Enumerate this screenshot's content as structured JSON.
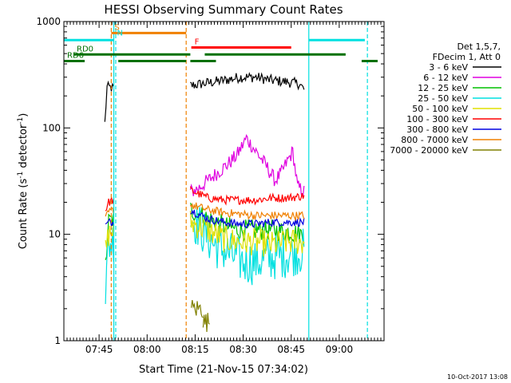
{
  "chart_data": {
    "type": "line",
    "title": "HESSI Observing Summary Count Rates",
    "xlabel": "Start Time (21-Nov-15 07:34:02)",
    "ylabel": "Count Rate (s⁻¹ detector⁻¹)",
    "ylabel_main": "Count Rate (s",
    "ylabel_sup1": "-1",
    "ylabel_mid": " detector",
    "ylabel_sup2": "-1",
    "ylabel_end": ")",
    "x_unit": "minutes after 07:34:02",
    "xlim": [
      0,
      100
    ],
    "ylim": [
      1,
      1000
    ],
    "yscale": "log",
    "x_ticks": [
      {
        "value": 11,
        "label": "07:45"
      },
      {
        "value": 26,
        "label": "08:00"
      },
      {
        "value": 41,
        "label": "08:15"
      },
      {
        "value": 56,
        "label": "08:30"
      },
      {
        "value": 71,
        "label": "08:45"
      },
      {
        "value": 86,
        "label": "09:00"
      }
    ],
    "y_ticks": [
      {
        "value": 1,
        "label": "1"
      },
      {
        "value": 10,
        "label": "10"
      },
      {
        "value": 100,
        "label": "100"
      },
      {
        "value": 1000,
        "label": "1000"
      }
    ],
    "legend_header": [
      "Det 1,5,7,",
      "FDecim 1, Att 0"
    ],
    "legend_placement": "right",
    "series": [
      {
        "name": "3 - 6 keV",
        "color": "#000000",
        "segments": [
          [
            [
              12.8,
              110
            ],
            [
              13.5,
              240
            ],
            [
              14.5,
              240
            ],
            [
              15.5,
              235
            ]
          ],
          [
            [
              39.5,
              250
            ],
            [
              45,
              265
            ],
            [
              50,
              280
            ],
            [
              55,
              300
            ],
            [
              60,
              300
            ],
            [
              65,
              280
            ],
            [
              70,
              270
            ],
            [
              73.5,
              260
            ],
            [
              75,
              230
            ]
          ]
        ],
        "noise": 0.05
      },
      {
        "name": "6 - 12 keV",
        "color": "#e000e0",
        "segments": [
          [
            [
              39.5,
              25
            ],
            [
              42,
              27
            ],
            [
              45,
              32
            ],
            [
              48,
              38
            ],
            [
              51,
              45
            ],
            [
              54,
              55
            ],
            [
              57,
              80
            ],
            [
              60,
              60
            ],
            [
              63,
              45
            ],
            [
              66,
              32
            ],
            [
              68,
              38
            ],
            [
              70,
              50
            ],
            [
              71.5,
              60
            ],
            [
              73,
              28
            ],
            [
              75,
              25
            ]
          ]
        ],
        "noise": 0.07
      },
      {
        "name": "12 - 25 keV",
        "color": "#00c000",
        "segments": [
          [
            [
              13,
              5
            ],
            [
              14,
              13
            ],
            [
              15.5,
              14
            ]
          ],
          [
            [
              39.5,
              17
            ],
            [
              45,
              14
            ],
            [
              50,
              12
            ],
            [
              55,
              11
            ],
            [
              60,
              11
            ],
            [
              65,
              11
            ],
            [
              70,
              10.5
            ],
            [
              75,
              10
            ]
          ]
        ],
        "noise": 0.1
      },
      {
        "name": "25 - 50 keV",
        "color": "#00e0e0",
        "segments": [
          [
            [
              13,
              3
            ],
            [
              14,
              8
            ],
            [
              15.5,
              9
            ]
          ],
          [
            [
              39.5,
              15
            ],
            [
              43,
              11
            ],
            [
              47,
              8
            ],
            [
              52,
              6.5
            ],
            [
              56,
              5.5
            ],
            [
              60,
              5.5
            ],
            [
              65,
              6
            ],
            [
              70,
              6.5
            ],
            [
              75,
              7
            ]
          ]
        ],
        "noise": 0.22
      },
      {
        "name": "50 - 100 keV",
        "color": "#e0e000",
        "segments": [
          [
            [
              13,
              7
            ],
            [
              14,
              10
            ],
            [
              15.5,
              11
            ]
          ],
          [
            [
              39.5,
              13
            ],
            [
              45,
              11
            ],
            [
              50,
              9
            ],
            [
              55,
              8.5
            ],
            [
              60,
              8.5
            ],
            [
              65,
              8
            ],
            [
              70,
              8.5
            ],
            [
              75,
              8.5
            ]
          ]
        ],
        "noise": 0.13
      },
      {
        "name": "100 - 300 keV",
        "color": "#ff0000",
        "segments": [
          [
            [
              13,
              17
            ],
            [
              14,
              20
            ],
            [
              15.5,
              21
            ]
          ],
          [
            [
              39.5,
              26
            ],
            [
              45,
              22
            ],
            [
              50,
              21
            ],
            [
              55,
              21
            ],
            [
              60,
              21
            ],
            [
              65,
              22
            ],
            [
              70,
              22
            ],
            [
              75,
              23
            ]
          ]
        ],
        "noise": 0.04
      },
      {
        "name": "300 - 800 keV",
        "color": "#0000e0",
        "segments": [
          [
            [
              13,
              12
            ],
            [
              14,
              13
            ],
            [
              15.5,
              13
            ]
          ],
          [
            [
              39.5,
              17
            ],
            [
              45,
              14
            ],
            [
              50,
              13
            ],
            [
              55,
              12.5
            ],
            [
              60,
              12.5
            ],
            [
              65,
              13
            ],
            [
              70,
              13
            ],
            [
              75,
              13
            ]
          ]
        ],
        "noise": 0.04
      },
      {
        "name": "800 - 7000 keV",
        "color": "#f08000",
        "segments": [
          [
            [
              13,
              14
            ],
            [
              14,
              16
            ],
            [
              15.5,
              17
            ]
          ],
          [
            [
              39.5,
              19
            ],
            [
              45,
              17
            ],
            [
              50,
              16
            ],
            [
              55,
              15.5
            ],
            [
              60,
              15
            ],
            [
              65,
              15
            ],
            [
              70,
              15
            ],
            [
              75,
              15
            ]
          ]
        ],
        "noise": 0.04
      },
      {
        "name": "7000 - 20000 keV",
        "color": "#808000",
        "segments": [
          [
            [
              39.8,
              2
            ],
            [
              43.5,
              2
            ]
          ],
          [
            [
              43.5,
              1.5
            ],
            [
              45.5,
              1.5
            ]
          ]
        ],
        "noise": 0.1
      }
    ],
    "vertical_lines": [
      {
        "x": 14.8,
        "color": "#f08000",
        "dashed": true
      },
      {
        "x": 15.6,
        "color": "#00e0e0",
        "dashed": false
      },
      {
        "x": 16.2,
        "color": "#00e0e0",
        "dashed": true
      },
      {
        "x": 38.2,
        "color": "#f08000",
        "dashed": true
      },
      {
        "x": 76.5,
        "color": "#00e0e0",
        "dashed": false
      },
      {
        "x": 94.8,
        "color": "#00e0e0",
        "dashed": true
      }
    ],
    "flag_bars": [
      {
        "label": "",
        "color": "#00e0e0",
        "x": [
          0,
          15.6
        ],
        "y": 670
      },
      {
        "label": "",
        "color": "#00e0e0",
        "x": [
          76.5,
          94
        ],
        "y": 670
      },
      {
        "label": "S",
        "color": "#f08000",
        "x": [
          14.8,
          38.2
        ],
        "y": 780
      },
      {
        "label": "N",
        "color": "#00e0e0",
        "x": [
          15.6,
          15.6
        ],
        "y": 690
      },
      {
        "label": "F",
        "color": "#ff0000",
        "x": [
          39.8,
          71
        ],
        "y": 570
      },
      {
        "label": "RD0",
        "color": "#007000",
        "x": [
          3,
          39.5
        ],
        "y": 490
      },
      {
        "label": "",
        "color": "#007000",
        "x": [
          44,
          88
        ],
        "y": 490
      },
      {
        "label": "RD6",
        "color": "#007000",
        "x": [
          0,
          6.5
        ],
        "y": 425
      },
      {
        "label": "",
        "color": "#007000",
        "x": [
          17,
          38.2
        ],
        "y": 425
      },
      {
        "label": "",
        "color": "#007000",
        "x": [
          39.5,
          47.5
        ],
        "y": 425
      },
      {
        "label": "",
        "color": "#007000",
        "x": [
          93,
          98
        ],
        "y": 425
      }
    ]
  },
  "footer": {
    "date_stamp": "10-Oct-2017 13:08"
  }
}
